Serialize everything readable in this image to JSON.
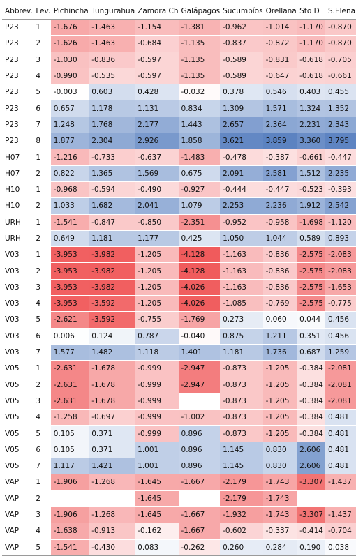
{
  "table": {
    "headers": [
      "Abbrev.",
      "Lev.",
      "Pichincha",
      "Tungurahua",
      "Zamora Ch",
      "Galápagos",
      "Sucumbíos",
      "Orellana",
      "Sto D",
      "S.Elena"
    ],
    "rows": [
      {
        "abbrev": "P23",
        "lev": "1",
        "values": [
          "-1.676",
          "-1.463",
          "-1.154",
          "-1.381",
          "-0.962",
          "-1.014",
          "-1.170",
          "-0.870"
        ]
      },
      {
        "abbrev": "P23",
        "lev": "2",
        "values": [
          "-1.626",
          "-1.463",
          "-0.684",
          "-1.135",
          "-0.837",
          "-0.872",
          "-1.170",
          "-0.870"
        ]
      },
      {
        "abbrev": "P23",
        "lev": "3",
        "values": [
          "-1.030",
          "-0.836",
          "-0.597",
          "-1.135",
          "-0.589",
          "-0.831",
          "-0.618",
          "-0.705"
        ]
      },
      {
        "abbrev": "P23",
        "lev": "4",
        "values": [
          "-0.990",
          "-0.535",
          "-0.597",
          "-1.135",
          "-0.589",
          "-0.647",
          "-0.618",
          "-0.661"
        ]
      },
      {
        "abbrev": "P23",
        "lev": "5",
        "values": [
          "-0.003",
          "0.603",
          "0.428",
          "-0.032",
          "0.378",
          "0.546",
          "0.403",
          "0.455"
        ]
      },
      {
        "abbrev": "P23",
        "lev": "6",
        "values": [
          "0.657",
          "1.178",
          "1.131",
          "0.834",
          "1.309",
          "1.571",
          "1.324",
          "1.352"
        ]
      },
      {
        "abbrev": "P23",
        "lev": "7",
        "values": [
          "1.248",
          "1.768",
          "2.177",
          "1.443",
          "2.657",
          "2.364",
          "2.231",
          "2.343"
        ]
      },
      {
        "abbrev": "P23",
        "lev": "8",
        "values": [
          "1.877",
          "2.304",
          "2.926",
          "1.858",
          "3.621",
          "3.859",
          "3.360",
          "3.795"
        ]
      },
      {
        "abbrev": "H07",
        "lev": "1",
        "values": [
          "-1.216",
          "-0.733",
          "-0.637",
          "-1.483",
          "-0.478",
          "-0.387",
          "-0.661",
          "-0.447"
        ]
      },
      {
        "abbrev": "H07",
        "lev": "2",
        "values": [
          "0.822",
          "1.365",
          "1.569",
          "0.675",
          "2.091",
          "2.581",
          "1.512",
          "2.235"
        ]
      },
      {
        "abbrev": "H10",
        "lev": "1",
        "values": [
          "-0.968",
          "-0.594",
          "-0.490",
          "-0.927",
          "-0.444",
          "-0.447",
          "-0.523",
          "-0.393"
        ]
      },
      {
        "abbrev": "H10",
        "lev": "2",
        "values": [
          "1.033",
          "1.682",
          "2.041",
          "1.079",
          "2.253",
          "2.236",
          "1.912",
          "2.542"
        ]
      },
      {
        "abbrev": "URH",
        "lev": "1",
        "values": [
          "-1.541",
          "-0.847",
          "-0.850",
          "-2.351",
          "-0.952",
          "-0.958",
          "-1.698",
          "-1.120"
        ]
      },
      {
        "abbrev": "URH",
        "lev": "2",
        "values": [
          "0.649",
          "1.181",
          "1.177",
          "0.425",
          "1.050",
          "1.044",
          "0.589",
          "0.893"
        ]
      },
      {
        "abbrev": "V03",
        "lev": "1",
        "values": [
          "-3.953",
          "-3.982",
          "-1.205",
          "-4.128",
          "-1.163",
          "-0.836",
          "-2.575",
          "-2.083"
        ]
      },
      {
        "abbrev": "V03",
        "lev": "2",
        "values": [
          "-3.953",
          "-3.982",
          "-1.205",
          "-4.128",
          "-1.163",
          "-0.836",
          "-2.575",
          "-2.083"
        ]
      },
      {
        "abbrev": "V03",
        "lev": "3",
        "values": [
          "-3.953",
          "-3.982",
          "-1.205",
          "-4.026",
          "-1.163",
          "-0.836",
          "-2.575",
          "-1.653"
        ]
      },
      {
        "abbrev": "V03",
        "lev": "4",
        "values": [
          "-3.953",
          "-3.592",
          "-1.205",
          "-4.026",
          "-1.085",
          "-0.769",
          "-2.575",
          "-0.775"
        ]
      },
      {
        "abbrev": "V03",
        "lev": "5",
        "values": [
          "-2.621",
          "-3.592",
          "-0.755",
          "-1.769",
          "0.273",
          "0.060",
          "0.044",
          "0.456"
        ]
      },
      {
        "abbrev": "V03",
        "lev": "6",
        "values": [
          "0.006",
          "0.124",
          "0.787",
          "-0.040",
          "0.875",
          "1.211",
          "0.351",
          "0.456"
        ]
      },
      {
        "abbrev": "V03",
        "lev": "7",
        "values": [
          "1.577",
          "1.482",
          "1.118",
          "1.401",
          "1.181",
          "1.736",
          "0.687",
          "1.259"
        ]
      },
      {
        "abbrev": "V05",
        "lev": "1",
        "values": [
          "-2.631",
          "-1.678",
          "-0.999",
          "-2.947",
          "-0.873",
          "-1.205",
          "-0.384",
          "-2.081"
        ]
      },
      {
        "abbrev": "V05",
        "lev": "2",
        "values": [
          "-2.631",
          "-1.678",
          "-0.999",
          "-2.947",
          "-0.873",
          "-1.205",
          "-0.384",
          "-2.081"
        ]
      },
      {
        "abbrev": "V05",
        "lev": "3",
        "values": [
          "-2.631",
          "-1.678",
          "-0.999",
          "",
          "-0.873",
          "-1.205",
          "-0.384",
          "-2.081"
        ]
      },
      {
        "abbrev": "V05",
        "lev": "4",
        "values": [
          "-1.258",
          "-0.697",
          "-0.999",
          "-1.002",
          "-0.873",
          "-1.205",
          "-0.384",
          "0.481"
        ]
      },
      {
        "abbrev": "V05",
        "lev": "5",
        "values": [
          "0.105",
          "0.371",
          "-0.999",
          "0.896",
          "-0.873",
          "-1.205",
          "-0.384",
          "0.481"
        ]
      },
      {
        "abbrev": "V05",
        "lev": "6",
        "values": [
          "0.105",
          "0.371",
          "1.001",
          "0.896",
          "1.145",
          "0.830",
          "2.606",
          "0.481"
        ]
      },
      {
        "abbrev": "V05",
        "lev": "7",
        "values": [
          "1.117",
          "1.421",
          "1.001",
          "0.896",
          "1.145",
          "0.830",
          "2.606",
          "0.481"
        ]
      },
      {
        "abbrev": "VAP",
        "lev": "1",
        "values": [
          "-1.906",
          "-1.268",
          "-1.645",
          "-1.667",
          "-2.179",
          "-1.743",
          "-3.307",
          "-1.437"
        ]
      },
      {
        "abbrev": "VAP",
        "lev": "2",
        "values": [
          "",
          "",
          "-1.645",
          "",
          "-2.179",
          "-1.743",
          "",
          ""
        ]
      },
      {
        "abbrev": "VAP",
        "lev": "3",
        "values": [
          "-1.906",
          "-1.268",
          "-1.645",
          "-1.667",
          "-1.932",
          "-1.743",
          "-3.307",
          "-1.437"
        ]
      },
      {
        "abbrev": "VAP",
        "lev": "4",
        "values": [
          "-1.638",
          "-0.913",
          "-0.162",
          "-1.667",
          "-0.602",
          "-0.337",
          "-0.414",
          "-0.704"
        ]
      },
      {
        "abbrev": "VAP",
        "lev": "5",
        "values": [
          "-1.541",
          "-0.430",
          "0.083",
          "-0.262",
          "0.260",
          "0.284",
          "0.190",
          "0.038"
        ]
      }
    ]
  },
  "colors": {
    "negative_max": "#f0595a",
    "positive_max": "#5b82c1",
    "neutral": "#ffffff"
  }
}
